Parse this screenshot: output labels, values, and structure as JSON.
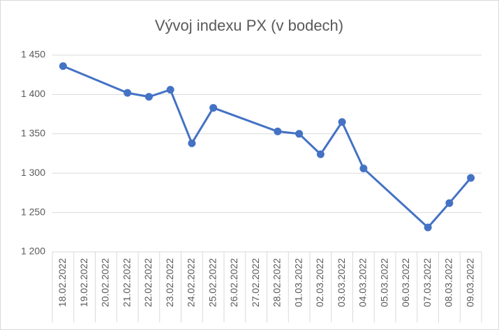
{
  "chart_data": {
    "type": "line",
    "title": "Vývoj indexu PX (v bodech)",
    "x": [
      "18.02.2022",
      "21.02.2022",
      "22.02.2022",
      "23.02.2022",
      "24.02.2022",
      "25.02.2022",
      "28.02.2022",
      "01.03.2022",
      "02.03.2022",
      "03.03.2022",
      "04.03.2022",
      "07.03.2022",
      "08.03.2022",
      "09.03.2022"
    ],
    "xticks": [
      "18.02.2022",
      "19.02.2022",
      "20.02.2022",
      "21.02.2022",
      "22.02.2022",
      "23.02.2022",
      "24.02.2022",
      "25.02.2022",
      "26.02.2022",
      "27.02.2022",
      "28.02.2022",
      "01.03.2022",
      "02.03.2022",
      "03.03.2022",
      "04.03.2022",
      "05.03.2022",
      "06.03.2022",
      "07.03.2022",
      "08.03.2022",
      "09.03.2022"
    ],
    "series": [
      {
        "color": "#4472c4",
        "values": [
          1436,
          1402,
          1397,
          1406,
          1338,
          1383,
          1353,
          1350,
          1324,
          1365,
          1306,
          1231,
          1262,
          1294
        ]
      }
    ],
    "ylim": [
      1200,
      1450
    ],
    "yticks": [
      {
        "value": 1200,
        "label": "1 200"
      },
      {
        "value": 1250,
        "label": "1 250"
      },
      {
        "value": 1300,
        "label": "1 300"
      },
      {
        "value": 1350,
        "label": "1 350"
      },
      {
        "value": 1400,
        "label": "1 400"
      },
      {
        "value": 1450,
        "label": "1 450"
      }
    ],
    "grid": true
  }
}
